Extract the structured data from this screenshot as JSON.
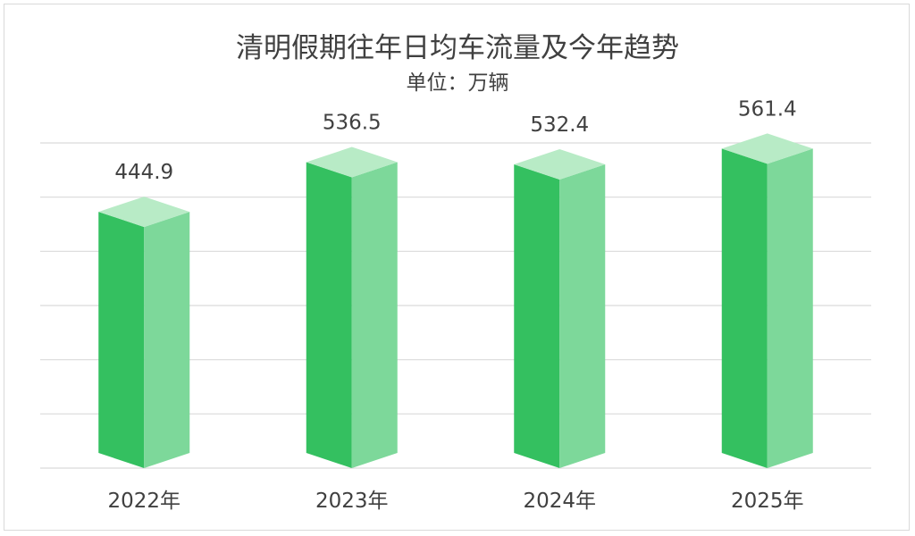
{
  "chart_data": {
    "type": "bar",
    "title": "清明假期往年日均车流量及今年趋势",
    "subtitle": "单位：万辆",
    "categories": [
      "2022年",
      "2023年",
      "2024年",
      "2025年"
    ],
    "values": [
      444.9,
      536.5,
      532.4,
      561.4
    ],
    "value_labels": [
      "444.9",
      "536.5",
      "532.4",
      "561.4"
    ],
    "ylim": [
      0,
      600
    ],
    "grid": true,
    "style": "3d-column",
    "colors": {
      "front": "#34c060",
      "side": "#7dd89a",
      "top": "#b8ebc6",
      "grid": "#d9d9d9",
      "text": "#404040"
    }
  }
}
